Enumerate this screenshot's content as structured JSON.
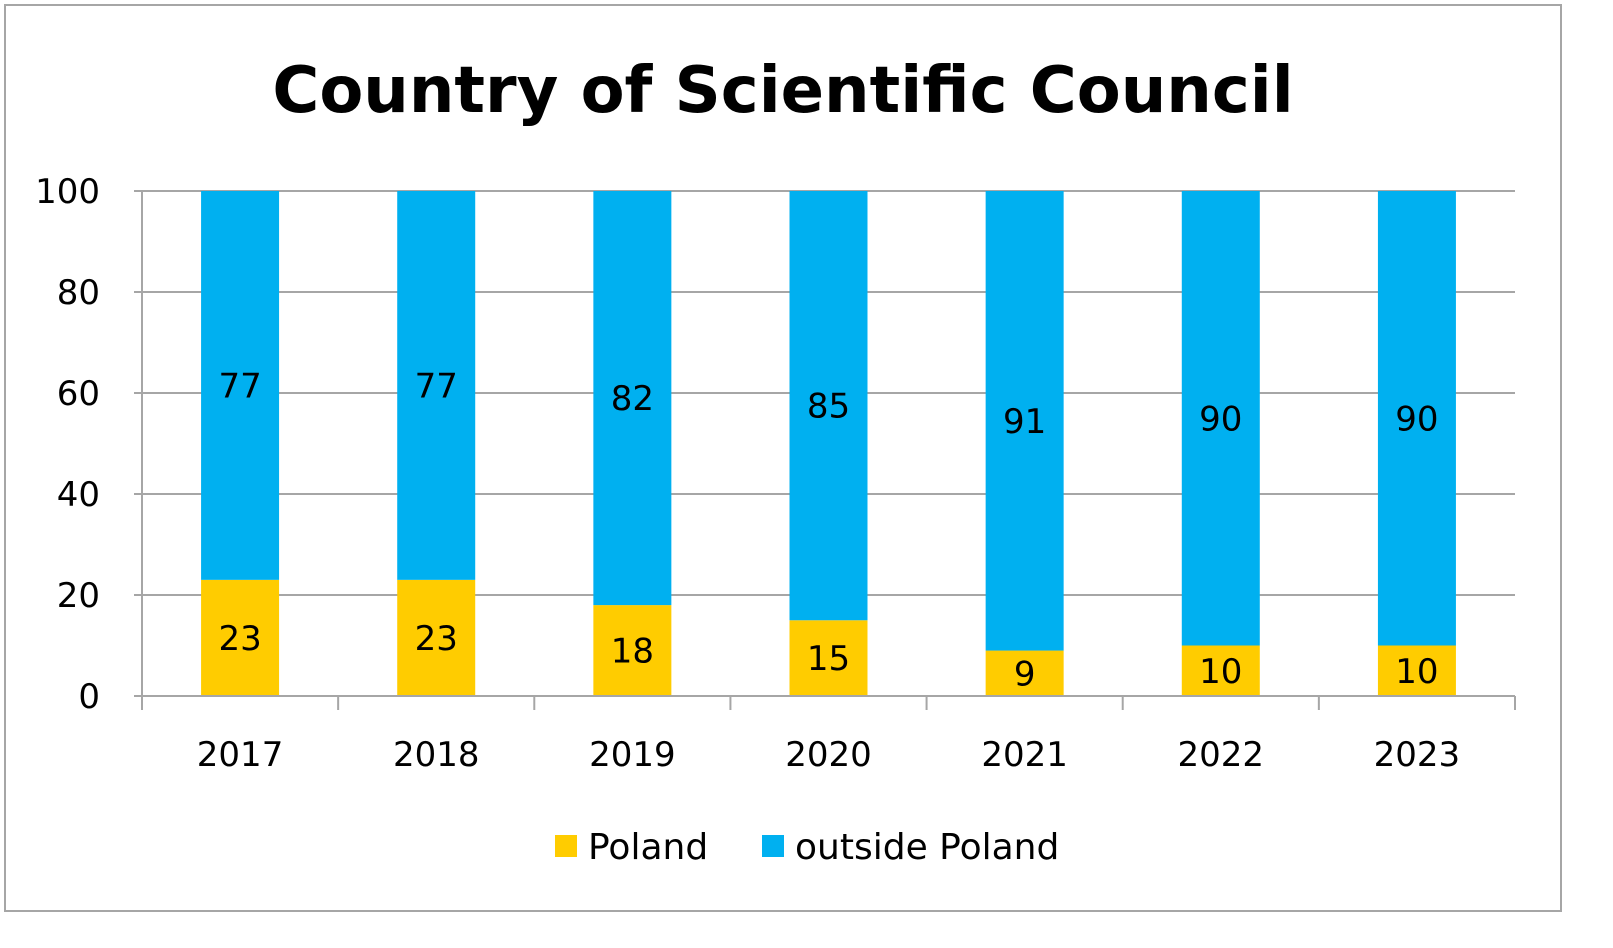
{
  "chart_data": {
    "type": "bar",
    "stacked": true,
    "title": "Country of Scientific Council",
    "xlabel": "",
    "ylabel": "",
    "categories": [
      "2017",
      "2018",
      "2019",
      "2020",
      "2021",
      "2022",
      "2023"
    ],
    "series": [
      {
        "name": "Poland",
        "color": "#FFCC00",
        "values": [
          23,
          23,
          18,
          15,
          9,
          10,
          10
        ]
      },
      {
        "name": "outside Poland",
        "color": "#00B0F0",
        "values": [
          77,
          77,
          82,
          85,
          91,
          90,
          90
        ]
      }
    ],
    "ylim": [
      0,
      100
    ],
    "yticks": [
      0,
      20,
      40,
      60,
      80,
      100
    ],
    "grid": true,
    "legend_position": "bottom"
  }
}
